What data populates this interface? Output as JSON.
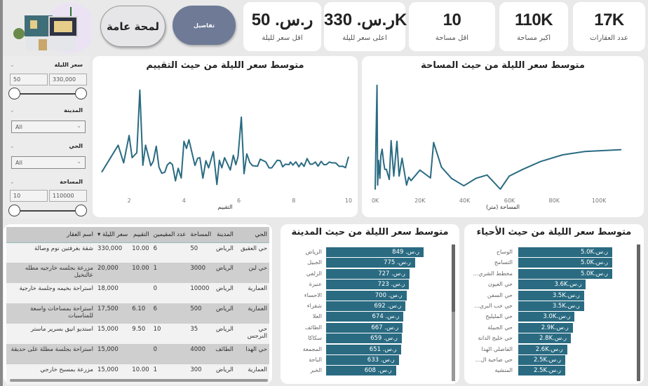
{
  "header": {
    "overview_button": "لمحة عامة",
    "details_button": "تفاصيل",
    "logo": "house-logo"
  },
  "kpis": [
    {
      "value": "ر.س. 50",
      "label": "اقل سعر لليلة"
    },
    {
      "value": "ر.س. 330K",
      "label": "اعلى سعر لليلة"
    },
    {
      "value": "10",
      "label": "اقل مساحة"
    },
    {
      "value": "110K",
      "label": "اكبر مساحة"
    },
    {
      "value": "17K",
      "label": "عدد العقارات"
    }
  ],
  "filters": {
    "price": {
      "label": "سعر الليلة",
      "min": "50",
      "max": "330,000"
    },
    "city": {
      "label": "المدينة",
      "value": "All"
    },
    "district": {
      "label": "الحي",
      "value": "All"
    },
    "area": {
      "label": "المساحة",
      "min": "10",
      "max": "110000"
    }
  },
  "colors": {
    "series": "#2a6b82",
    "details_button": "#6e7a96"
  },
  "chart_data": [
    {
      "type": "line",
      "title": "متوسط سعر الليلة من حيث التقييم",
      "xlabel": "التقييم",
      "xticks": [
        "2",
        "4",
        "6",
        "8",
        "10"
      ],
      "xlim": [
        1,
        10
      ],
      "x": [
        1.0,
        1.6,
        1.8,
        2.0,
        2.11,
        2.28,
        2.39,
        2.5,
        2.6,
        2.79,
        2.88,
        2.99,
        3.09,
        3.19,
        3.3,
        3.39,
        3.49,
        3.58,
        3.69,
        3.79,
        3.9,
        4.0,
        4.09,
        4.18,
        4.4,
        4.5,
        4.58,
        4.69,
        4.8,
        4.9,
        5.07,
        5.2,
        5.29,
        5.38,
        5.48,
        5.69,
        5.8,
        5.89,
        5.97,
        6.09,
        6.19,
        6.29,
        6.4,
        6.5,
        6.68,
        6.78,
        6.98,
        7.1,
        7.2,
        7.4,
        7.51,
        7.6,
        7.7,
        7.83,
        7.88,
        7.97,
        8.08,
        8.19,
        8.28,
        8.38,
        8.49,
        8.6,
        8.68,
        8.79,
        8.89,
        9.0,
        9.1,
        9.19,
        9.3,
        9.4,
        9.53,
        9.66,
        9.78,
        9.89,
        10.0
      ],
      "y": [
        85,
        210,
        128,
        255,
        152,
        175,
        465,
        117,
        210,
        115,
        135,
        205,
        108,
        80,
        85,
        118,
        130,
        120,
        45,
        103,
        58,
        228,
        195,
        235,
        116,
        150,
        152,
        57,
        138,
        105,
        180,
        28,
        140,
        105,
        152,
        95,
        163,
        120,
        157,
        340,
        78,
        170,
        130,
        115,
        113,
        145,
        133,
        105,
        105,
        140,
        138,
        110,
        122,
        120,
        132,
        118,
        133,
        110,
        128,
        112,
        148,
        122,
        122,
        132,
        113,
        135,
        120,
        120,
        132,
        128,
        128,
        112,
        113,
        106,
        157
      ]
    },
    {
      "type": "line",
      "title": "متوسط سعر الليلة من حيث المساحة",
      "xlabel": "المساحة (متر)",
      "xticks": [
        "0K",
        "20K",
        "40K",
        "60K",
        "80K",
        "100K"
      ],
      "xlim": [
        0,
        110
      ],
      "x": [
        0,
        0.3,
        0.8,
        1.1,
        1.5,
        2.1,
        2.5,
        3.1,
        3.8,
        4.3,
        5.0,
        6.3,
        7.1,
        8.3,
        9.7,
        10.7,
        12,
        14,
        15,
        16,
        20,
        24.7,
        26.1,
        29.6,
        34.1,
        39.6,
        45,
        50,
        55.9,
        59.9,
        65.9,
        73.9,
        83.8,
        93.7,
        110
      ],
      "y": [
        20,
        220,
        485,
        40,
        150,
        70,
        170,
        200,
        140,
        110,
        110,
        65,
        238,
        80,
        235,
        80,
        160,
        40,
        75,
        60,
        107,
        72,
        230,
        120,
        70,
        37,
        70,
        85,
        22,
        80,
        110,
        145,
        175,
        190,
        198
      ]
    },
    {
      "type": "bar",
      "title": "متوسط سعر الليلة من حيث المدينة",
      "orientation": "horizontal",
      "categories": [
        "الرياض",
        "الجبيل",
        "الزلفي",
        "عنيزة",
        "الاحساء",
        "شقراء",
        "العلا",
        "الطائف",
        "سكاكا",
        "المجمعة",
        "الباحة",
        "الخبر"
      ],
      "values": [
        849,
        775,
        727,
        723,
        700,
        692,
        674,
        667,
        659,
        651,
        633,
        608
      ],
      "labels": [
        "ر.س. 849",
        "ر.س. 775",
        "ر.س. 727",
        "ر.س. 723",
        "ر.س. 700",
        "ر.س. 692",
        "ر.س. 674",
        "ر.س. 667",
        "ر.س. 659",
        "ر.س. 651",
        "ر.س. 633",
        "ر.س. 608"
      ]
    },
    {
      "type": "bar",
      "title": "متوسط سعر الليلة من حيث الأحياء",
      "orientation": "horizontal",
      "categories": [
        "الوساح",
        "التسامح",
        "مخطط الشري...",
        "حي العيون",
        "حي السفن",
        "حي خب البري...",
        "حي المليليح",
        "حي الجبيلة",
        "حي خليج الدانة",
        "الفاضلي الهدا",
        "حي ضاحية ال...",
        "المنشية"
      ],
      "values": [
        5000,
        5000,
        5000,
        3600,
        3500,
        3500,
        3000,
        2900,
        2800,
        2600,
        2500,
        2500
      ],
      "labels": [
        "ر.س.5.0K",
        "ر.س.5.0K",
        "ر.س.5.0K",
        "ر.س.3.6K",
        "ر.س.3.5K",
        "ر.س.3.5K",
        "ر.س.3.0K",
        "ر.س.2.9K",
        "ر.س.2.8K",
        "ر.س.2.6K",
        "ر.س.2.5K",
        "ر.س.2.5K"
      ]
    }
  ],
  "table": {
    "columns": [
      "الحي",
      "المدينة",
      "المساحة",
      "عدد المقيمين",
      "التقييم",
      "سعر الليلة",
      "اسم العقار"
    ],
    "rows": [
      [
        "حي العقيق",
        "الرياض",
        "50",
        "6",
        "10.00",
        "330,000",
        "شقة بغرفتين نوم وصالة"
      ],
      [
        "حي لبن",
        "الرياض",
        "3000",
        "1",
        "10.00",
        "20,000",
        "مزرعة بجلسه خارجيه مطله عالنخيل"
      ],
      [
        "العمارية",
        "الرياض",
        "10000",
        "0",
        "",
        "18,000",
        "استراحة بخيمه وجلسة خارجية"
      ],
      [
        "العمارية",
        "الرياض",
        "500",
        "6",
        "6.10",
        "17,500",
        "استراحة بمساحات واسعة للمناسبات"
      ],
      [
        "حي النرجس",
        "الرياض",
        "35",
        "10",
        "9.50",
        "15,000",
        "استديو انيق بسرير ماستر"
      ],
      [
        "حي الهدا",
        "الطائف",
        "4000",
        "0",
        "",
        "15,000",
        "استراحة بجلسة مطلة على حديقة"
      ],
      [
        "العمارية",
        "الرياض",
        "300",
        "1",
        "10.00",
        "15,000",
        "مزرعة بمسبح خارجي"
      ]
    ]
  }
}
